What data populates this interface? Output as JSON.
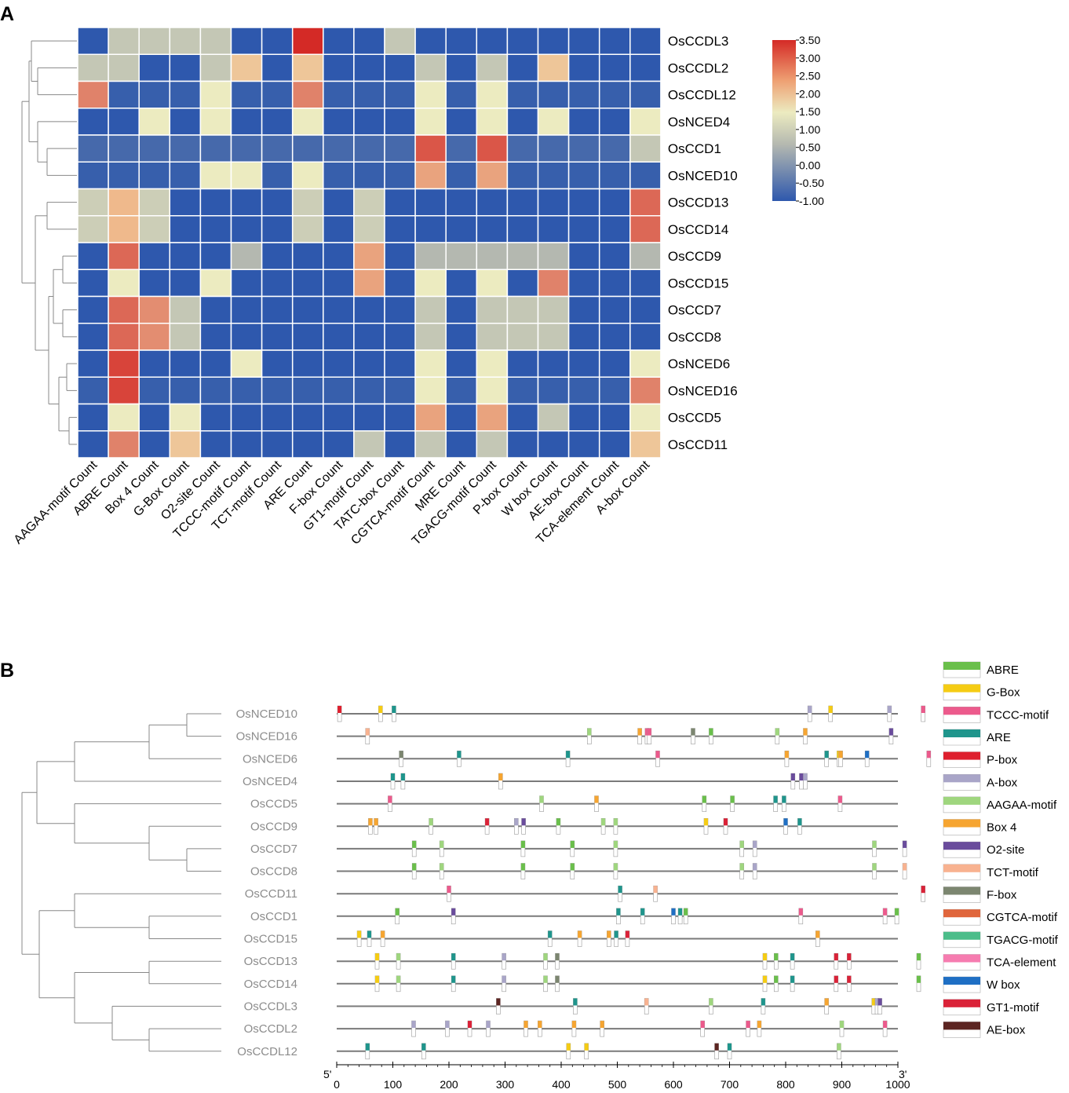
{
  "chart_data": [
    {
      "type": "heatmap",
      "panel": "A",
      "rows": [
        "OsCCDL3",
        "OsCCDL2",
        "OsCCDL12",
        "OsNCED4",
        "OsCCD1",
        "OsNCED10",
        "OsCCD13",
        "OsCCD14",
        "OsCCD9",
        "OsCCD15",
        "OsCCD7",
        "OsCCD8",
        "OsNCED6",
        "OsNCED16",
        "OsCCD5",
        "OsCCD11"
      ],
      "columns": [
        "AAGAA-motif Count",
        "ABRE Count",
        "Box 4 Count",
        "G-Box Count",
        "O2-site Count",
        "TCCC-motif Count",
        "TCT-motif Count",
        "ARE Count",
        "F-box Count",
        "GT1-motif Count",
        "TATC-box Count",
        "CGTCA-motif Count",
        "MRE Count",
        "TGACG-motif Count",
        "P-box Count",
        "W box Count",
        "AE-box Count",
        "TCA-element Count",
        "A-box Count"
      ],
      "values": [
        [
          -1,
          0.7,
          0.7,
          0.7,
          0.7,
          -1,
          -1,
          3.5,
          -1,
          -1,
          0.7,
          -1,
          -1,
          -1,
          -1,
          -1,
          -1,
          -1,
          -1
        ],
        [
          0.7,
          0.7,
          -1,
          -1,
          0.7,
          1.8,
          -1,
          1.8,
          -1,
          -1,
          -1,
          0.7,
          -1,
          0.7,
          -1,
          1.8,
          -1,
          -1,
          -1
        ],
        [
          2.5,
          -0.8,
          -0.8,
          -0.8,
          1.2,
          -0.8,
          -0.8,
          2.5,
          -0.8,
          -0.8,
          -0.8,
          1.2,
          -0.8,
          1.2,
          -0.8,
          -0.8,
          -0.8,
          -0.8,
          -0.8
        ],
        [
          -1,
          -1,
          1.2,
          -1,
          1.2,
          -1,
          -1,
          1.2,
          -1,
          -1,
          -1,
          1.2,
          -1,
          1.2,
          -1,
          1.2,
          -1,
          -1,
          1.2
        ],
        [
          -0.5,
          -0.5,
          -0.5,
          -0.5,
          -0.5,
          -0.5,
          -0.5,
          -0.5,
          -0.5,
          -0.5,
          -0.5,
          3,
          -0.5,
          3,
          -0.5,
          -0.5,
          -0.5,
          -0.5,
          0.7
        ],
        [
          -0.8,
          -0.8,
          -0.8,
          -0.8,
          1.2,
          1.2,
          -0.8,
          1.2,
          -0.8,
          -0.8,
          -0.8,
          2.2,
          -0.8,
          2.2,
          -0.8,
          -0.8,
          -0.8,
          -0.8,
          -0.8
        ],
        [
          0.8,
          2,
          0.8,
          -1,
          -1,
          -1,
          -1,
          0.8,
          -1,
          0.8,
          -1,
          -1,
          -1,
          -1,
          -1,
          -1,
          -1,
          -1,
          2.8
        ],
        [
          0.8,
          2,
          0.8,
          -1,
          -1,
          -1,
          -1,
          0.8,
          -1,
          0.8,
          -1,
          -1,
          -1,
          -1,
          -1,
          -1,
          -1,
          -1,
          2.8
        ],
        [
          -1,
          2.8,
          -1,
          -1,
          -1,
          0.5,
          -1,
          -1,
          -1,
          2.2,
          -1,
          0.5,
          0.5,
          0.5,
          0.5,
          0.5,
          -1,
          -1,
          0.5
        ],
        [
          -1,
          1.2,
          -1,
          -1,
          1.2,
          -1,
          -1,
          -1,
          -1,
          2.2,
          -1,
          1.2,
          -1,
          1.2,
          -1,
          2.5,
          -1,
          -1,
          -1
        ],
        [
          -1,
          2.8,
          2.4,
          0.7,
          -1,
          -1,
          -1,
          -1,
          -1,
          -1,
          -1,
          0.7,
          -1,
          0.7,
          0.7,
          0.7,
          -1,
          -1,
          -1
        ],
        [
          -1,
          2.8,
          2.4,
          0.7,
          -1,
          -1,
          -1,
          -1,
          -1,
          -1,
          -1,
          0.7,
          -1,
          0.7,
          0.7,
          0.7,
          -1,
          -1,
          -1
        ],
        [
          -1,
          3.2,
          -1,
          -1,
          -1,
          1.2,
          -1,
          -1,
          -1,
          -1,
          -1,
          1.2,
          -1,
          1.2,
          -1,
          -1,
          -1,
          -1,
          1.2
        ],
        [
          -0.8,
          3.2,
          -0.8,
          -0.8,
          -0.8,
          -0.8,
          -0.8,
          -0.8,
          -0.8,
          -0.8,
          -0.8,
          1.2,
          -0.8,
          1.2,
          -0.8,
          -0.8,
          -0.8,
          -0.8,
          2.5
        ],
        [
          -1,
          1.2,
          -1,
          1.2,
          -1,
          -1,
          -1,
          -1,
          -1,
          -1,
          -1,
          2.2,
          -1,
          2.2,
          -1,
          0.7,
          -1,
          -1,
          1.2
        ],
        [
          -1,
          2.5,
          -1,
          1.8,
          -1,
          -1,
          -1,
          -1,
          -1,
          0.7,
          -1,
          0.7,
          -1,
          0.7,
          -1,
          -1,
          -1,
          -1,
          1.8
        ]
      ],
      "colorbar": {
        "min": -1.0,
        "max": 3.5,
        "ticks": [
          "3.50",
          "3.00",
          "2.50",
          "2.00",
          "1.50",
          "1.00",
          "0.50",
          "0.00",
          "-0.50",
          "-1.00"
        ]
      },
      "colors": {
        "low": "#2e58ad",
        "mid": "#ecebc0",
        "high": "#d42a26"
      }
    },
    {
      "type": "motif-map",
      "panel": "B",
      "genes": [
        "OsNCED10",
        "OsNCED16",
        "OsNCED6",
        "OsNCED4",
        "OsCCD5",
        "OsCCD9",
        "OsCCD7",
        "OsCCD8",
        "OsCCD11",
        "OsCCD1",
        "OsCCD15",
        "OsCCD13",
        "OsCCD14",
        "OsCCDL3",
        "OsCCDL2",
        "OsCCDL12"
      ],
      "axis": {
        "min": 0,
        "max": 1000,
        "ticks": [
          "0",
          "100",
          "200",
          "300",
          "400",
          "500",
          "600",
          "700",
          "800",
          "900",
          "1000"
        ],
        "start_label": "5'",
        "end_label": "3'"
      },
      "legend": [
        {
          "name": "ABRE",
          "color": "#6abf4b"
        },
        {
          "name": "G-Box",
          "color": "#f5cc14"
        },
        {
          "name": "TCCC-motif",
          "color": "#ec5a8c"
        },
        {
          "name": "ARE",
          "color": "#1f958c"
        },
        {
          "name": "P-box",
          "color": "#de1f2e"
        },
        {
          "name": "A-box",
          "color": "#a9a5c8"
        },
        {
          "name": "AAGAA-motif",
          "color": "#9fd67e"
        },
        {
          "name": "Box 4",
          "color": "#f6a531"
        },
        {
          "name": "O2-site",
          "color": "#6a4c9c"
        },
        {
          "name": "TCT-motif",
          "color": "#f8b290"
        },
        {
          "name": "F-box",
          "color": "#7c8670"
        },
        {
          "name": "CGTCA-motif",
          "color": "#e0663c"
        },
        {
          "name": "TGACG-motif",
          "color": "#4cbd8a"
        },
        {
          "name": "TCA-element",
          "color": "#f67cb0"
        },
        {
          "name": "W box",
          "color": "#1f6fc4"
        },
        {
          "name": "GT1-motif",
          "color": "#da2238"
        },
        {
          "name": "AE-box",
          "color": "#5c2522"
        }
      ],
      "sites": [
        [
          [
            "P-box",
            5
          ],
          [
            "G-Box",
            78
          ],
          [
            "ARE",
            102
          ],
          [
            "A-box",
            843
          ],
          [
            "G-Box",
            880
          ],
          [
            "A-box",
            985
          ],
          [
            "TCCC-motif",
            1045
          ]
        ],
        [
          [
            "TCT-motif",
            55
          ],
          [
            "AAGAA-motif",
            450
          ],
          [
            "Box 4",
            540
          ],
          [
            "TCCC-motif",
            553
          ],
          [
            "TCCC-motif",
            557
          ],
          [
            "F-box",
            635
          ],
          [
            "ABRE",
            667
          ],
          [
            "AAGAA-motif",
            785
          ],
          [
            "Box 4",
            835
          ],
          [
            "O2-site",
            988
          ]
        ],
        [
          [
            "F-box",
            115
          ],
          [
            "ARE",
            218
          ],
          [
            "ARE",
            412
          ],
          [
            "TCCC-motif",
            572
          ],
          [
            "Box 4",
            802
          ],
          [
            "ARE",
            873
          ],
          [
            "G-Box",
            895
          ],
          [
            "Box 4",
            898
          ],
          [
            "W box",
            945
          ],
          [
            "TCCC-motif",
            1055
          ]
        ],
        [
          [
            "ARE",
            100
          ],
          [
            "ARE",
            118
          ],
          [
            "Box 4",
            292
          ],
          [
            "O2-site",
            813
          ],
          [
            "O2-site",
            828
          ],
          [
            "A-box",
            835
          ]
        ],
        [
          [
            "TCCC-motif",
            95
          ],
          [
            "AAGAA-motif",
            365
          ],
          [
            "Box 4",
            463
          ],
          [
            "ABRE",
            655
          ],
          [
            "ABRE",
            705
          ],
          [
            "ARE",
            782
          ],
          [
            "ARE",
            797
          ],
          [
            "TCCC-motif",
            897
          ]
        ],
        [
          [
            "Box 4",
            60
          ],
          [
            "Box 4",
            70
          ],
          [
            "AAGAA-motif",
            168
          ],
          [
            "GT1-motif",
            268
          ],
          [
            "A-box",
            320
          ],
          [
            "O2-site",
            333
          ],
          [
            "ABRE",
            395
          ],
          [
            "AAGAA-motif",
            475
          ],
          [
            "AAGAA-motif",
            497
          ],
          [
            "G-Box",
            658
          ],
          [
            "GT1-motif",
            693
          ],
          [
            "W box",
            800
          ],
          [
            "ARE",
            825
          ]
        ],
        [
          [
            "ABRE",
            138
          ],
          [
            "AAGAA-motif",
            187
          ],
          [
            "ABRE",
            332
          ],
          [
            "ABRE",
            420
          ],
          [
            "AAGAA-motif",
            497
          ],
          [
            "AAGAA-motif",
            722
          ],
          [
            "A-box",
            745
          ],
          [
            "AAGAA-motif",
            958
          ],
          [
            "O2-site",
            1012
          ]
        ],
        [
          [
            "ABRE",
            138
          ],
          [
            "AAGAA-motif",
            187
          ],
          [
            "ABRE",
            332
          ],
          [
            "ABRE",
            420
          ],
          [
            "AAGAA-motif",
            497
          ],
          [
            "AAGAA-motif",
            722
          ],
          [
            "A-box",
            745
          ],
          [
            "AAGAA-motif",
            958
          ],
          [
            "TCT-motif",
            1012
          ]
        ],
        [
          [
            "TCCC-motif",
            200
          ],
          [
            "ARE",
            505
          ],
          [
            "TCT-motif",
            568
          ],
          [
            "GT1-motif",
            1045
          ]
        ],
        [
          [
            "ABRE",
            108
          ],
          [
            "O2-site",
            208
          ],
          [
            "ARE",
            502
          ],
          [
            "ARE",
            545
          ],
          [
            "W box",
            600
          ],
          [
            "ARE",
            612
          ],
          [
            "ABRE",
            622
          ],
          [
            "TCCC-motif",
            827
          ],
          [
            "TCCC-motif",
            977
          ],
          [
            "ABRE",
            998
          ]
        ],
        [
          [
            "G-Box",
            40
          ],
          [
            "ARE",
            58
          ],
          [
            "Box 4",
            82
          ],
          [
            "ARE",
            380
          ],
          [
            "Box 4",
            433
          ],
          [
            "Box 4",
            485
          ],
          [
            "ARE",
            498
          ],
          [
            "GT1-motif",
            518
          ],
          [
            "Box 4",
            857
          ]
        ],
        [
          [
            "G-Box",
            72
          ],
          [
            "AAGAA-motif",
            110
          ],
          [
            "ARE",
            208
          ],
          [
            "A-box",
            298
          ],
          [
            "AAGAA-motif",
            372
          ],
          [
            "F-box",
            393
          ],
          [
            "G-Box",
            763
          ],
          [
            "ABRE",
            783
          ],
          [
            "ARE",
            812
          ],
          [
            "GT1-motif",
            890
          ],
          [
            "GT1-motif",
            913
          ],
          [
            "ABRE",
            1037
          ]
        ],
        [
          [
            "G-Box",
            72
          ],
          [
            "AAGAA-motif",
            110
          ],
          [
            "ARE",
            208
          ],
          [
            "A-box",
            298
          ],
          [
            "AAGAA-motif",
            372
          ],
          [
            "F-box",
            393
          ],
          [
            "G-Box",
            763
          ],
          [
            "ABRE",
            783
          ],
          [
            "ARE",
            812
          ],
          [
            "GT1-motif",
            890
          ],
          [
            "GT1-motif",
            913
          ],
          [
            "ABRE",
            1037
          ]
        ],
        [
          [
            "AE-box",
            288
          ],
          [
            "ARE",
            425
          ],
          [
            "TCT-motif",
            552
          ],
          [
            "AAGAA-motif",
            667
          ],
          [
            "ARE",
            760
          ],
          [
            "Box 4",
            873
          ],
          [
            "G-Box",
            957
          ],
          [
            "A-box",
            963
          ],
          [
            "O2-site",
            968
          ]
        ],
        [
          [
            "A-box",
            137
          ],
          [
            "A-box",
            197
          ],
          [
            "GT1-motif",
            237
          ],
          [
            "A-box",
            270
          ],
          [
            "Box 4",
            337
          ],
          [
            "Box 4",
            362
          ],
          [
            "Box 4",
            423
          ],
          [
            "Box 4",
            473
          ],
          [
            "TCCC-motif",
            652
          ],
          [
            "TCCC-motif",
            733
          ],
          [
            "Box 4",
            753
          ],
          [
            "AAGAA-motif",
            900
          ],
          [
            "TCCC-motif",
            977
          ]
        ],
        [
          [
            "ARE",
            55
          ],
          [
            "ARE",
            155
          ],
          [
            "G-Box",
            413
          ],
          [
            "G-Box",
            445
          ],
          [
            "AE-box",
            677
          ],
          [
            "ARE",
            700
          ],
          [
            "AAGAA-motif",
            895
          ]
        ]
      ]
    }
  ],
  "panel_a": {
    "letter": "A",
    "rows": [
      "OsCCDL3",
      "OsCCDL2",
      "OsCCDL12",
      "OsNCED4",
      "OsCCD1",
      "OsNCED10",
      "OsCCD13",
      "OsCCD14",
      "OsCCD9",
      "OsCCD15",
      "OsCCD7",
      "OsCCD8",
      "OsNCED6",
      "OsNCED16",
      "OsCCD5",
      "OsCCD11"
    ],
    "columns": [
      "AAGAA-motif Count",
      "ABRE Count",
      "Box 4 Count",
      "G-Box Count",
      "O2-site Count",
      "TCCC-motif Count",
      "TCT-motif Count",
      "ARE Count",
      "F-box Count",
      "GT1-motif Count",
      "TATC-box Count",
      "CGTCA-motif Count",
      "MRE Count",
      "TGACG-motif Count",
      "P-box Count",
      "W box Count",
      "AE-box Count",
      "TCA-element Count",
      "A-box Count"
    ]
  },
  "panel_b": {
    "letter": "B",
    "genes": [
      "OsNCED10",
      "OsNCED16",
      "OsNCED6",
      "OsNCED4",
      "OsCCD5",
      "OsCCD9",
      "OsCCD7",
      "OsCCD8",
      "OsCCD11",
      "OsCCD1",
      "OsCCD15",
      "OsCCD13",
      "OsCCD14",
      "OsCCDL3",
      "OsCCDL2",
      "OsCCDL12"
    ],
    "legend": [
      "ABRE",
      "G-Box",
      "TCCC-motif",
      "ARE",
      "P-box",
      "A-box",
      "AAGAA-motif",
      "Box 4",
      "O2-site",
      "TCT-motif",
      "F-box",
      "CGTCA-motif",
      "TGACG-motif",
      "TCA-element",
      "W box",
      "GT1-motif",
      "AE-box"
    ],
    "axis_ticks": [
      "0",
      "100",
      "200",
      "300",
      "400",
      "500",
      "600",
      "700",
      "800",
      "900",
      "1000"
    ],
    "start_label": "5'",
    "end_label": "3'"
  },
  "colorbar_ticks": [
    "3.50",
    "3.00",
    "2.50",
    "2.00",
    "1.50",
    "1.00",
    "0.50",
    "0.00",
    "-0.50",
    "-1.00"
  ]
}
